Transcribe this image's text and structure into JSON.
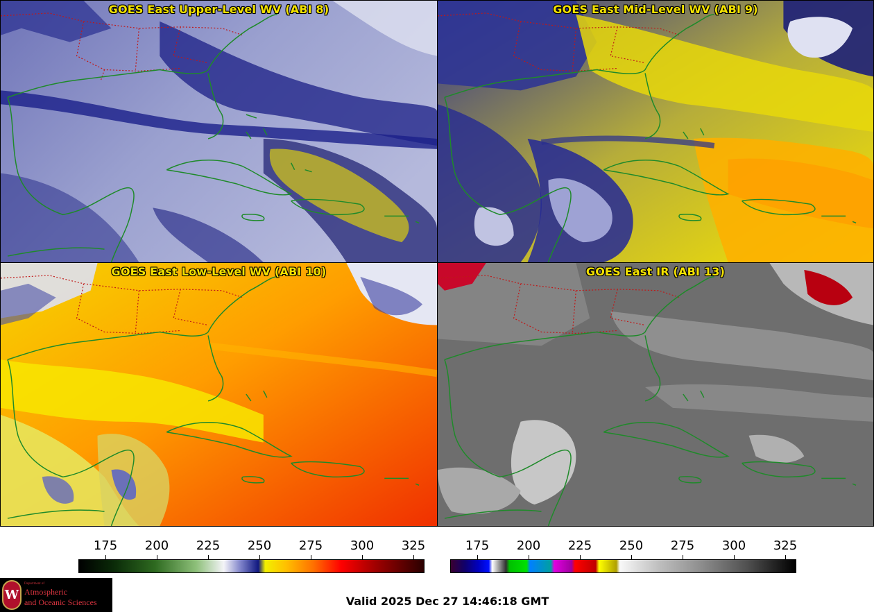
{
  "panels": [
    {
      "title": "GOES East Upper-Level WV (ABI 8)",
      "scheme": "wv"
    },
    {
      "title": "GOES East Mid-Level WV (ABI 9)",
      "scheme": "wv"
    },
    {
      "title": "GOES East Low-Level WV (ABI 10)",
      "scheme": "wv"
    },
    {
      "title": "GOES East IR (ABI 13)",
      "scheme": "ir"
    }
  ],
  "colorbars": {
    "wv": {
      "ticks": [
        "175",
        "200",
        "225",
        "250",
        "275",
        "300",
        "325"
      ]
    },
    "ir": {
      "ticks": [
        "175",
        "200",
        "225",
        "250",
        "275",
        "300",
        "325"
      ]
    }
  },
  "logo": {
    "dept": "Department of",
    "line1": "Atmospheric",
    "line2": "and Oceanic Sciences",
    "seal": "W"
  },
  "footer": {
    "valid": "Valid 2025 Dec 27 14:46:18 GMT"
  },
  "colors": {
    "title": "#f4e200",
    "coast": "#1f8a2a",
    "borders": "#e02020"
  }
}
